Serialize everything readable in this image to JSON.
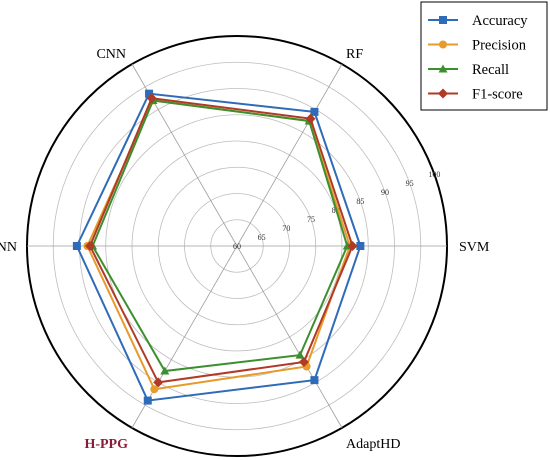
{
  "chart_data": {
    "type": "radar",
    "axes": [
      "SVM",
      "RF",
      "CNN",
      "RNN",
      "H-PPG",
      "AdaptHD"
    ],
    "highlighted_axis": "H-PPG",
    "rlim": [
      60,
      100
    ],
    "ticks": [
      "60",
      "65",
      "70",
      "75",
      "80",
      "85",
      "90",
      "95",
      "100"
    ],
    "grid": true,
    "legend_position": "top-right",
    "series": [
      {
        "name": "Accuracy",
        "color": "#2e6bb8",
        "marker": "square",
        "values": [
          83.5,
          89.5,
          93.5,
          90.5,
          94.0,
          89.5
        ]
      },
      {
        "name": "Precision",
        "color": "#e69b2a",
        "marker": "circle",
        "values": [
          81.5,
          87.5,
          92.0,
          88.5,
          91.5,
          86.5
        ]
      },
      {
        "name": "Recall",
        "color": "#3c8f2e",
        "marker": "triangle",
        "values": [
          81.0,
          87.5,
          92.0,
          87.5,
          87.5,
          84.0
        ]
      },
      {
        "name": "F1-score",
        "color": "#b03a26",
        "marker": "diamond",
        "values": [
          82.0,
          88.0,
          92.5,
          88.0,
          90.0,
          85.5
        ]
      }
    ]
  }
}
